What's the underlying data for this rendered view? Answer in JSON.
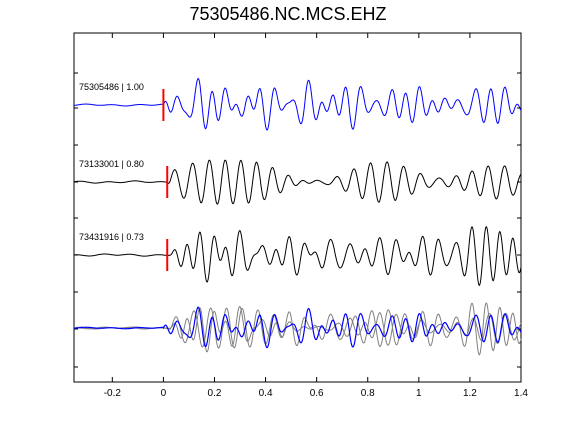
{
  "page": {
    "title": "75305486.NC.MCS.EHZ"
  },
  "chart_data": {
    "type": "line",
    "title": "75305486.NC.MCS.EHZ",
    "xlabel": "",
    "ylabel": "",
    "xlim": [
      -0.35,
      1.4
    ],
    "x_ticks": [
      -0.2,
      0,
      0.2,
      0.4,
      0.6,
      0.8,
      1,
      1.2,
      1.4
    ],
    "x_tick_labels": [
      "-0.2",
      "0",
      "0.2",
      "0.4",
      "0.6",
      "0.8",
      "1",
      "1.2",
      "1.4"
    ],
    "grid": false,
    "colors": {
      "reference": "#0000ff",
      "correlated": "#000000",
      "overlay": "#808080",
      "pick": "#ff0000"
    },
    "series": [
      {
        "name": "75305486 | 1.00",
        "pick_x": 0.0,
        "onset_x": 0.0,
        "amplitude": 1.0,
        "color": "#0000ff",
        "seed": 1
      },
      {
        "name": "73133001 | 0.80",
        "pick_x": 0.015,
        "onset_x": 0.015,
        "amplitude": 1.0,
        "color": "#000000",
        "seed": 2
      },
      {
        "name": "73431916 | 0.73",
        "pick_x": 0.015,
        "onset_x": 0.02,
        "amplitude": 1.0,
        "color": "#000000",
        "seed": 3
      }
    ],
    "stack": {
      "reference_color": "#0000ff",
      "overlay_color": "#808080"
    }
  }
}
